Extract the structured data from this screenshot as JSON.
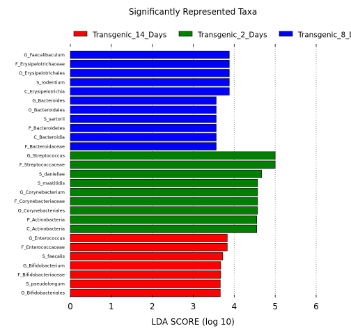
{
  "chart_data": {
    "type": "bar",
    "orientation": "horizontal",
    "title": "Significantly Represented Taxa",
    "xlabel": "LDA SCORE (log 10)",
    "ylabel": "",
    "xlim": [
      0,
      6
    ],
    "xticks": [
      "0",
      "1",
      "2",
      "3",
      "4",
      "5",
      "6"
    ],
    "grid": "vertical dotted",
    "legend_position": "top",
    "legend": [
      {
        "name": "Transgenic_14_Days",
        "color": "#ff0000"
      },
      {
        "name": "Transgenic_2_Days",
        "color": "#008000"
      },
      {
        "name": "Transgenic_8_D",
        "color": "#0000ff"
      }
    ],
    "bars": [
      {
        "label": "G_Faecalibaculum",
        "value": 3.88,
        "group": 2
      },
      {
        "label": "F_Erysipelotrichaceae",
        "value": 3.88,
        "group": 2
      },
      {
        "label": "O_Erysipelotrichales",
        "value": 3.88,
        "group": 2
      },
      {
        "label": "S_rodentium",
        "value": 3.88,
        "group": 2
      },
      {
        "label": "C_Erysipelotrichia",
        "value": 3.88,
        "group": 2
      },
      {
        "label": "G_Bacteroides",
        "value": 3.56,
        "group": 2
      },
      {
        "label": "O_Bacteroidales",
        "value": 3.56,
        "group": 2
      },
      {
        "label": "S_sartorii",
        "value": 3.56,
        "group": 2
      },
      {
        "label": "P_Bacteroidetes",
        "value": 3.56,
        "group": 2
      },
      {
        "label": "C_Bacteroidia",
        "value": 3.56,
        "group": 2
      },
      {
        "label": "F_Bacteroidaceae",
        "value": 3.56,
        "group": 2
      },
      {
        "label": "G_Streptococcus",
        "value": 5.0,
        "group": 1
      },
      {
        "label": "F_Streptococcaceae",
        "value": 5.0,
        "group": 1
      },
      {
        "label": "S_danieliae",
        "value": 4.67,
        "group": 1
      },
      {
        "label": "S_mastitidis",
        "value": 4.57,
        "group": 1
      },
      {
        "label": "G_Corynebacterium",
        "value": 4.57,
        "group": 1
      },
      {
        "label": "F_Corynebacteriaceae",
        "value": 4.57,
        "group": 1
      },
      {
        "label": "O_Corynebacteriales",
        "value": 4.57,
        "group": 1
      },
      {
        "label": "P_Actinobacteria",
        "value": 4.55,
        "group": 1
      },
      {
        "label": "C_Actinobacteria",
        "value": 4.55,
        "group": 1
      },
      {
        "label": "G_Enterococcus",
        "value": 3.83,
        "group": 0
      },
      {
        "label": "F_Enterococcaceae",
        "value": 3.83,
        "group": 0
      },
      {
        "label": "S_faecalis",
        "value": 3.72,
        "group": 0
      },
      {
        "label": "G_Bifidobacterium",
        "value": 3.67,
        "group": 0
      },
      {
        "label": "F_Bifidobacteriaceae",
        "value": 3.67,
        "group": 0
      },
      {
        "label": "S_pseudolongum",
        "value": 3.66,
        "group": 0
      },
      {
        "label": "O_Bifidobacteriales",
        "value": 3.66,
        "group": 0
      }
    ]
  }
}
